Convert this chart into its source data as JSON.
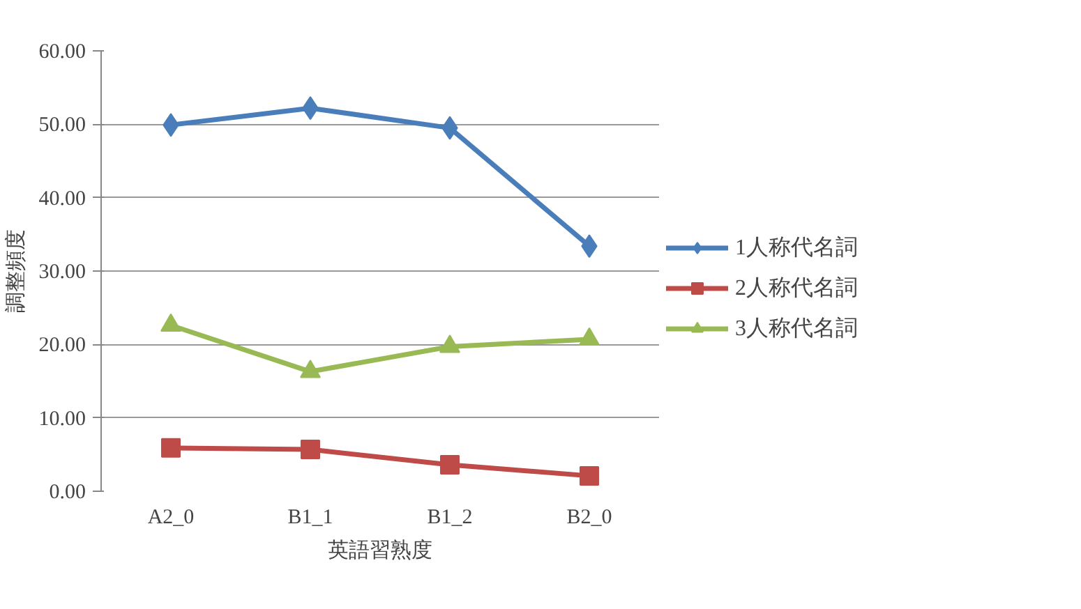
{
  "chart_data": {
    "type": "line",
    "xlabel": "英語習熟度",
    "ylabel": "調整頻度",
    "categories": [
      "A2_0",
      "B1_1",
      "B1_2",
      "B2_0"
    ],
    "series": [
      {
        "name": "1人称代名詞",
        "color": "#4a7ebb",
        "marker": "diamond",
        "values": [
          49.9,
          52.2,
          49.5,
          33.4
        ]
      },
      {
        "name": "2人称代名詞",
        "color": "#be4b48",
        "marker": "square",
        "values": [
          5.9,
          5.7,
          3.6,
          2.1
        ]
      },
      {
        "name": "3人称代名詞",
        "color": "#98b954",
        "marker": "triangle",
        "values": [
          22.6,
          16.3,
          19.7,
          20.7
        ]
      }
    ],
    "ylim": [
      0,
      60
    ],
    "yticks": [
      {
        "value": 0,
        "label": "0.00"
      },
      {
        "value": 10,
        "label": "10.00"
      },
      {
        "value": 20,
        "label": "20.00"
      },
      {
        "value": 30,
        "label": "30.00"
      },
      {
        "value": 40,
        "label": "40.00"
      },
      {
        "value": 50,
        "label": "50.00"
      },
      {
        "value": 60,
        "label": "60.00"
      }
    ],
    "grid": "y",
    "legend": "right",
    "line_style": "solid"
  }
}
